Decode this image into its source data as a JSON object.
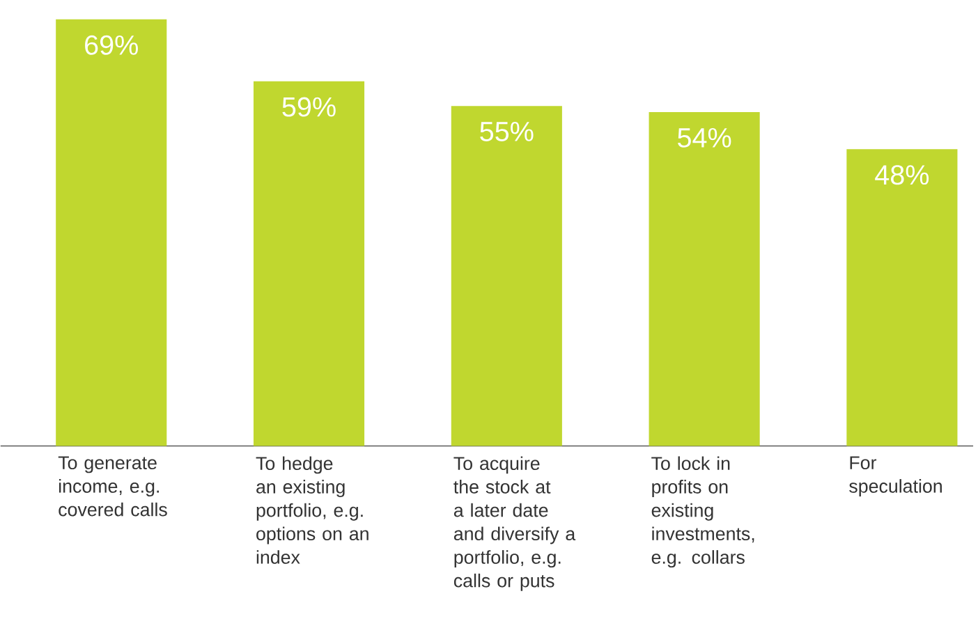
{
  "chart_data": {
    "type": "bar",
    "categories": [
      "To generate income, e.g. covered calls",
      "To hedge an existing portfolio, e.g. options on an index",
      "To acquire the stock at a later date and diversify a portfolio, e.g. calls or puts",
      "To lock in profits on existing investments, e.g. collars",
      "For speculation"
    ],
    "values": [
      69,
      59,
      55,
      54,
      48
    ],
    "value_labels": [
      "69%",
      "59%",
      "55%",
      "54%",
      "48%"
    ],
    "color": "#c0d72f"
  }
}
